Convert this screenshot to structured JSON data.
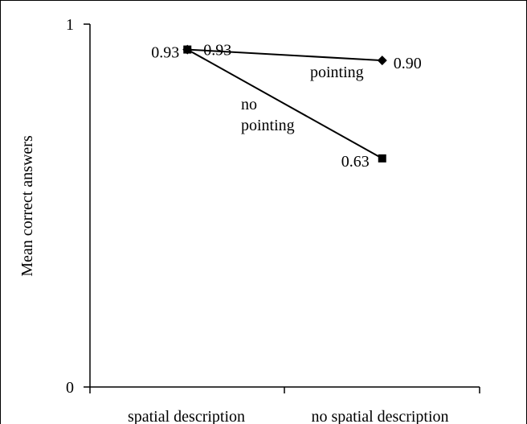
{
  "chart_data": {
    "type": "line",
    "ylabel": "Mean correct answers",
    "ylim": [
      0,
      1
    ],
    "y_ticks": [
      0,
      1
    ],
    "grid": false,
    "categories": [
      "spatial description",
      "no spatial description"
    ],
    "series": [
      {
        "name": "pointing",
        "marker": "diamond",
        "values": [
          0.93,
          0.9
        ],
        "labels": [
          "0.93",
          "0.90"
        ]
      },
      {
        "name": "no pointing",
        "marker": "square",
        "values": [
          0.93,
          0.63
        ],
        "labels": [
          "0.93",
          "0.63"
        ]
      }
    ],
    "series_label_lines": {
      "no_pointing": [
        "no",
        "pointing"
      ]
    },
    "colors": {
      "line": "#000000",
      "frame": "#000000"
    }
  }
}
